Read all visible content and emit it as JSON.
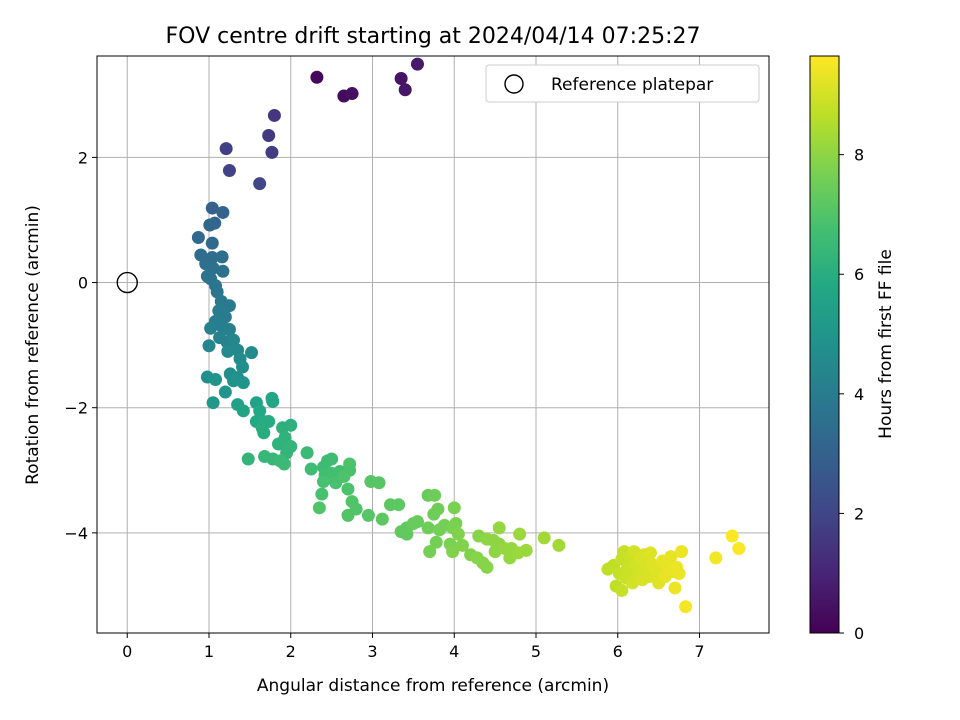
{
  "chart_data": {
    "type": "scatter",
    "title": "FOV centre drift starting at 2024/04/14 07:25:27",
    "xlabel": "Angular distance from reference (arcmin)",
    "ylabel": "Rotation from reference (arcmin)",
    "xlim": [
      -0.37,
      7.85
    ],
    "ylim": [
      -5.6,
      3.62
    ],
    "xticks": [
      0,
      1,
      2,
      3,
      4,
      5,
      6,
      7
    ],
    "yticks": [
      -4,
      -2,
      0,
      2
    ],
    "grid": true,
    "legend_position": "upper right",
    "colormap": "viridis",
    "colorbar": {
      "label": "Hours from first FF file",
      "range": [
        0,
        9.65
      ],
      "ticks": [
        0,
        2,
        4,
        6,
        8
      ]
    },
    "reference": {
      "label": "Reference platepar",
      "x": 0,
      "y": 0
    },
    "points": [
      [
        2.32,
        3.28,
        0.2
      ],
      [
        2.65,
        2.98,
        0.3
      ],
      [
        2.75,
        3.02,
        0.4
      ],
      [
        3.35,
        3.26,
        0.5
      ],
      [
        3.4,
        3.08,
        0.6
      ],
      [
        3.55,
        3.49,
        0.7
      ],
      [
        1.8,
        2.67,
        1.5
      ],
      [
        1.73,
        2.35,
        1.6
      ],
      [
        1.77,
        2.08,
        1.7
      ],
      [
        1.21,
        2.14,
        1.8
      ],
      [
        1.25,
        1.79,
        1.9
      ],
      [
        1.62,
        1.58,
        2.0
      ],
      [
        1.04,
        1.19,
        3.0
      ],
      [
        1.17,
        1.12,
        3.1
      ],
      [
        1.01,
        0.92,
        3.2
      ],
      [
        1.07,
        0.95,
        3.2
      ],
      [
        0.87,
        0.72,
        3.3
      ],
      [
        1.04,
        0.63,
        3.3
      ],
      [
        0.9,
        0.44,
        3.4
      ],
      [
        1.04,
        0.4,
        3.4
      ],
      [
        1.16,
        0.41,
        3.5
      ],
      [
        0.96,
        0.3,
        3.5
      ],
      [
        1.05,
        0.23,
        3.6
      ],
      [
        1.17,
        0.18,
        3.6
      ],
      [
        0.98,
        0.1,
        3.7
      ],
      [
        1.02,
        0.06,
        3.7
      ],
      [
        1.08,
        -0.05,
        3.8
      ],
      [
        1.1,
        -0.15,
        3.8
      ],
      [
        1.15,
        -0.3,
        3.9
      ],
      [
        1.25,
        -0.37,
        3.9
      ],
      [
        1.12,
        -0.45,
        4.0
      ],
      [
        1.2,
        -0.55,
        4.0
      ],
      [
        1.08,
        -0.62,
        4.1
      ],
      [
        1.16,
        -0.7,
        4.1
      ],
      [
        1.02,
        -0.73,
        4.2
      ],
      [
        1.25,
        -0.75,
        4.2
      ],
      [
        1.13,
        -0.88,
        4.3
      ],
      [
        1.22,
        -0.95,
        4.3
      ],
      [
        1.3,
        -0.92,
        4.4
      ],
      [
        1.0,
        -1.01,
        4.4
      ],
      [
        1.35,
        -1.08,
        4.5
      ],
      [
        1.23,
        -1.1,
        4.5
      ],
      [
        1.52,
        -1.12,
        4.6
      ],
      [
        1.38,
        -1.22,
        4.6
      ],
      [
        1.41,
        -1.35,
        4.7
      ],
      [
        1.26,
        -1.46,
        4.7
      ],
      [
        1.35,
        -1.52,
        4.8
      ],
      [
        0.98,
        -1.51,
        4.8
      ],
      [
        1.08,
        -1.55,
        4.9
      ],
      [
        1.3,
        -1.57,
        4.9
      ],
      [
        1.42,
        -1.6,
        5.0
      ],
      [
        1.2,
        -1.75,
        5.0
      ],
      [
        1.05,
        -1.92,
        5.1
      ],
      [
        1.35,
        -1.95,
        5.5
      ],
      [
        1.42,
        -2.05,
        5.6
      ],
      [
        1.58,
        -1.92,
        5.6
      ],
      [
        1.77,
        -1.85,
        5.7
      ],
      [
        1.78,
        -1.9,
        5.7
      ],
      [
        1.62,
        -2.05,
        5.8
      ],
      [
        1.58,
        -2.22,
        5.8
      ],
      [
        1.67,
        -2.22,
        5.9
      ],
      [
        1.73,
        -2.22,
        5.9
      ],
      [
        1.65,
        -2.32,
        6.0
      ],
      [
        1.67,
        -2.4,
        6.0
      ],
      [
        1.9,
        -2.32,
        6.1
      ],
      [
        2.0,
        -2.28,
        6.1
      ],
      [
        1.93,
        -2.48,
        6.2
      ],
      [
        1.85,
        -2.58,
        6.2
      ],
      [
        2.0,
        -2.62,
        6.3
      ],
      [
        1.95,
        -2.72,
        6.3
      ],
      [
        1.48,
        -2.82,
        6.3
      ],
      [
        1.68,
        -2.78,
        6.4
      ],
      [
        1.78,
        -2.82,
        6.4
      ],
      [
        1.87,
        -2.85,
        6.5
      ],
      [
        1.92,
        -2.9,
        6.5
      ],
      [
        2.2,
        -2.72,
        6.5
      ],
      [
        2.25,
        -2.98,
        6.6
      ],
      [
        2.4,
        -2.95,
        6.6
      ],
      [
        2.45,
        -2.85,
        6.6
      ],
      [
        2.5,
        -2.82,
        6.6
      ],
      [
        2.42,
        -3.08,
        6.7
      ],
      [
        2.5,
        -3.05,
        6.7
      ],
      [
        2.6,
        -3.02,
        6.7
      ],
      [
        2.38,
        -3.38,
        6.8
      ],
      [
        2.4,
        -3.18,
        6.8
      ],
      [
        2.55,
        -3.2,
        6.8
      ],
      [
        2.72,
        -3.0,
        6.8
      ],
      [
        2.72,
        -2.9,
        6.9
      ],
      [
        2.65,
        -3.1,
        6.9
      ],
      [
        2.7,
        -3.3,
        6.9
      ],
      [
        2.75,
        -3.5,
        7.0
      ],
      [
        2.8,
        -3.62,
        7.0
      ],
      [
        2.7,
        -3.72,
        7.0
      ],
      [
        2.35,
        -3.6,
        7.0
      ],
      [
        2.98,
        -3.18,
        7.1
      ],
      [
        3.08,
        -3.2,
        7.1
      ],
      [
        2.95,
        -3.72,
        7.1
      ],
      [
        3.12,
        -3.78,
        7.2
      ],
      [
        3.22,
        -3.55,
        7.2
      ],
      [
        3.32,
        -3.55,
        7.2
      ],
      [
        3.35,
        -3.98,
        7.3
      ],
      [
        3.42,
        -3.92,
        7.3
      ],
      [
        3.42,
        -4.02,
        7.3
      ],
      [
        3.5,
        -3.85,
        7.4
      ],
      [
        3.55,
        -3.82,
        7.4
      ],
      [
        3.68,
        -3.4,
        7.4
      ],
      [
        3.76,
        -3.4,
        7.5
      ],
      [
        3.75,
        -3.7,
        7.5
      ],
      [
        3.8,
        -3.62,
        7.5
      ],
      [
        3.68,
        -3.92,
        7.5
      ],
      [
        3.82,
        -3.95,
        7.6
      ],
      [
        3.88,
        -3.88,
        7.6
      ],
      [
        3.7,
        -4.3,
        7.6
      ],
      [
        3.78,
        -4.15,
        7.6
      ],
      [
        3.95,
        -4.18,
        7.7
      ],
      [
        3.98,
        -3.92,
        7.7
      ],
      [
        4.02,
        -3.85,
        7.7
      ],
      [
        4.0,
        -3.6,
        7.7
      ],
      [
        3.98,
        -4.3,
        7.8
      ],
      [
        4.05,
        -4.02,
        7.8
      ],
      [
        4.1,
        -4.2,
        7.8
      ],
      [
        4.2,
        -4.35,
        7.8
      ],
      [
        4.28,
        -4.4,
        7.9
      ],
      [
        4.3,
        -4.05,
        7.9
      ],
      [
        4.35,
        -4.48,
        7.9
      ],
      [
        4.4,
        -4.55,
        7.9
      ],
      [
        4.4,
        -4.1,
        8.0
      ],
      [
        4.48,
        -4.12,
        8.0
      ],
      [
        4.5,
        -4.3,
        8.0
      ],
      [
        4.55,
        -4.18,
        8.0
      ],
      [
        4.55,
        -3.92,
        8.1
      ],
      [
        4.62,
        -4.25,
        8.1
      ],
      [
        4.68,
        -4.4,
        8.1
      ],
      [
        4.7,
        -4.25,
        8.1
      ],
      [
        4.78,
        -4.32,
        8.2
      ],
      [
        4.8,
        -4.02,
        8.2
      ],
      [
        4.88,
        -4.28,
        8.2
      ],
      [
        5.1,
        -4.08,
        8.3
      ],
      [
        5.28,
        -4.2,
        8.3
      ],
      [
        5.88,
        -4.58,
        8.7
      ],
      [
        5.95,
        -4.52,
        8.7
      ],
      [
        5.98,
        -4.85,
        8.7
      ],
      [
        6.02,
        -4.65,
        8.8
      ],
      [
        6.05,
        -4.42,
        8.8
      ],
      [
        6.05,
        -4.92,
        8.8
      ],
      [
        6.08,
        -4.3,
        8.8
      ],
      [
        6.1,
        -4.72,
        8.9
      ],
      [
        6.12,
        -4.55,
        8.9
      ],
      [
        6.15,
        -4.4,
        8.9
      ],
      [
        6.15,
        -4.62,
        8.9
      ],
      [
        6.18,
        -4.8,
        9.0
      ],
      [
        6.2,
        -4.3,
        9.0
      ],
      [
        6.22,
        -4.52,
        9.0
      ],
      [
        6.25,
        -4.68,
        9.0
      ],
      [
        6.28,
        -4.4,
        9.1
      ],
      [
        6.3,
        -4.75,
        9.1
      ],
      [
        6.32,
        -4.35,
        9.1
      ],
      [
        6.35,
        -4.55,
        9.1
      ],
      [
        6.38,
        -4.7,
        9.1
      ],
      [
        6.4,
        -4.32,
        9.2
      ],
      [
        6.42,
        -4.5,
        9.2
      ],
      [
        6.48,
        -4.62,
        9.2
      ],
      [
        6.5,
        -4.8,
        9.2
      ],
      [
        6.55,
        -4.45,
        9.3
      ],
      [
        6.58,
        -4.7,
        9.3
      ],
      [
        6.62,
        -4.55,
        9.3
      ],
      [
        6.65,
        -4.38,
        9.3
      ],
      [
        6.68,
        -4.62,
        9.3
      ],
      [
        6.7,
        -4.88,
        9.4
      ],
      [
        6.72,
        -4.55,
        9.4
      ],
      [
        6.75,
        -4.65,
        9.4
      ],
      [
        6.78,
        -4.3,
        9.4
      ],
      [
        6.83,
        -5.18,
        9.5
      ],
      [
        7.2,
        -4.4,
        9.5
      ],
      [
        7.4,
        -4.05,
        9.6
      ],
      [
        7.48,
        -4.25,
        9.6
      ]
    ]
  }
}
